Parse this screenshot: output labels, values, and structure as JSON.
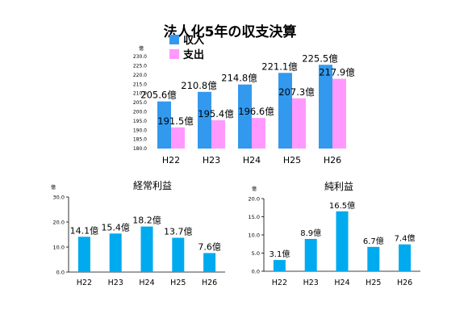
{
  "chart_data": [
    {
      "type": "bar",
      "title": "法人化5年の収支決算",
      "unit_label": "億",
      "categories": [
        "H22",
        "H23",
        "H24",
        "H25",
        "H26"
      ],
      "series": [
        {
          "name": "収入",
          "color": "#3399ee",
          "values": [
            205.6,
            210.8,
            214.8,
            221.1,
            225.5
          ],
          "labels": [
            "205.6億",
            "210.8億",
            "214.8億",
            "221.1億",
            "225.5億"
          ]
        },
        {
          "name": "支出",
          "color": "#ff99ff",
          "values": [
            191.5,
            195.4,
            196.6,
            207.3,
            217.9
          ],
          "labels": [
            "191.5億",
            "195.4億",
            "196.6億",
            "207.3億",
            "217.9億"
          ]
        }
      ],
      "ylim": [
        180.0,
        230.0
      ],
      "yticks": [
        "180.0",
        "185.0",
        "190.0",
        "195.0",
        "200.0",
        "205.0",
        "210.0",
        "215.0",
        "220.0",
        "225.0",
        "230.0"
      ],
      "grid": false,
      "legend": "top-left"
    },
    {
      "type": "bar",
      "title": "経常利益",
      "unit_label": "億",
      "categories": [
        "H22",
        "H23",
        "H24",
        "H25",
        "H26"
      ],
      "series": [
        {
          "color": "#00aaee",
          "values": [
            14.1,
            15.4,
            18.2,
            13.7,
            7.6
          ],
          "labels": [
            "14.1億",
            "15.4億",
            "18.2億",
            "13.7億",
            "7.6億"
          ]
        }
      ],
      "ylim": [
        0.0,
        30.0
      ],
      "yticks": [
        "0.0",
        "10.0",
        "20.0",
        "30.0"
      ],
      "grid": false
    },
    {
      "type": "bar",
      "title": "純利益",
      "unit_label": "億",
      "categories": [
        "H22",
        "H23",
        "H24",
        "H25",
        "H26"
      ],
      "series": [
        {
          "color": "#00aaee",
          "values": [
            3.1,
            8.9,
            16.5,
            6.7,
            7.4
          ],
          "labels": [
            "3.1億",
            "8.9億",
            "16.5億",
            "6.7億",
            "7.4億"
          ]
        }
      ],
      "ylim": [
        0.0,
        20.0
      ],
      "yticks": [
        "0.0",
        "5.0",
        "10.0",
        "15.0",
        "20.0"
      ],
      "grid": false
    }
  ]
}
